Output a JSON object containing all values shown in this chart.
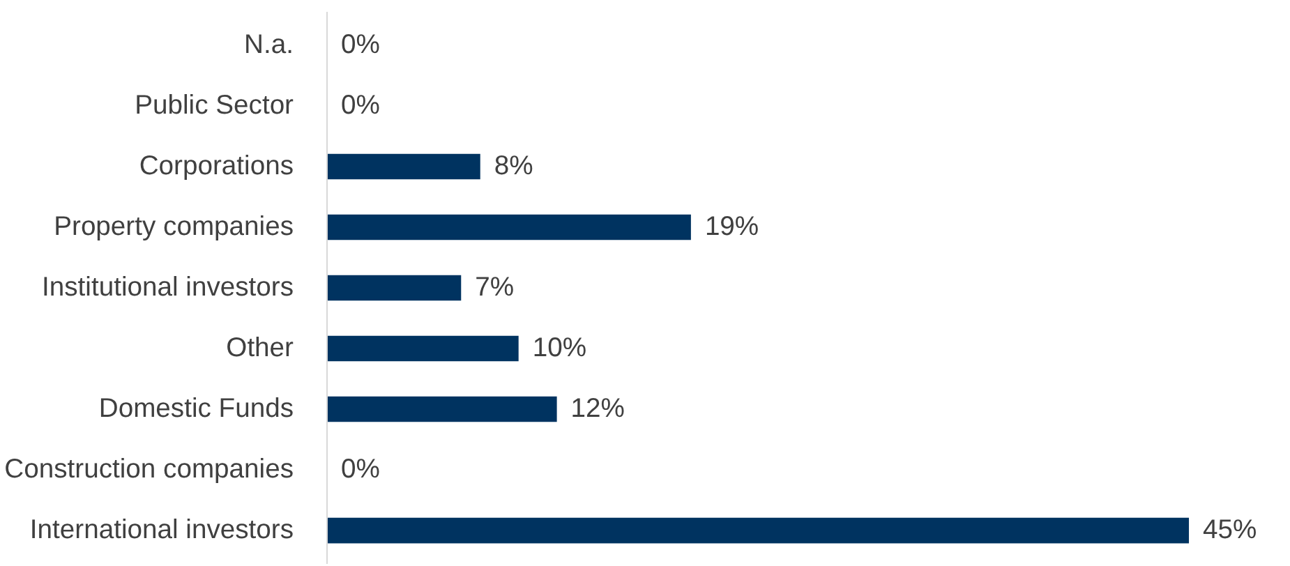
{
  "chart_data": {
    "type": "bar",
    "orientation": "horizontal",
    "categories": [
      "N.a.",
      "Public Sector",
      "Corporations",
      "Property companies",
      "Institutional investors",
      "Other",
      "Domestic Funds",
      "Construction companies",
      "International investors"
    ],
    "values": [
      0,
      0,
      8,
      19,
      7,
      10,
      12,
      0,
      45
    ],
    "value_labels": [
      "0%",
      "0%",
      "8%",
      "19%",
      "7%",
      "10%",
      "12%",
      "0%",
      "45%"
    ],
    "color": "#003360",
    "grid": false
  }
}
